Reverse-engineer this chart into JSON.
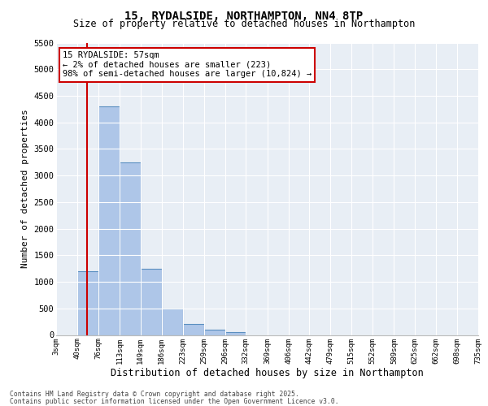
{
  "title_line1": "15, RYDALSIDE, NORTHAMPTON, NN4 8TP",
  "title_line2": "Size of property relative to detached houses in Northampton",
  "xlabel": "Distribution of detached houses by size in Northampton",
  "ylabel": "Number of detached properties",
  "bins": [
    "3sqm",
    "40sqm",
    "76sqm",
    "113sqm",
    "149sqm",
    "186sqm",
    "223sqm",
    "259sqm",
    "296sqm",
    "332sqm",
    "369sqm",
    "406sqm",
    "442sqm",
    "479sqm",
    "515sqm",
    "552sqm",
    "589sqm",
    "625sqm",
    "662sqm",
    "698sqm",
    "735sqm"
  ],
  "bin_edges": [
    3,
    40,
    76,
    113,
    149,
    186,
    223,
    259,
    296,
    332,
    369,
    406,
    442,
    479,
    515,
    552,
    589,
    625,
    662,
    698,
    735
  ],
  "bar_heights": [
    0,
    1200,
    4300,
    3250,
    1250,
    500,
    200,
    100,
    60,
    0,
    0,
    0,
    0,
    0,
    0,
    0,
    0,
    0,
    0,
    0
  ],
  "bar_color": "#aec6e8",
  "bar_edgecolor": "#5a8fc0",
  "property_line_x": 57,
  "property_line_color": "#cc0000",
  "ylim": [
    0,
    5500
  ],
  "yticks": [
    0,
    500,
    1000,
    1500,
    2000,
    2500,
    3000,
    3500,
    4000,
    4500,
    5000,
    5500
  ],
  "annotation_title": "15 RYDALSIDE: 57sqm",
  "annotation_line1": "← 2% of detached houses are smaller (223)",
  "annotation_line2": "98% of semi-detached houses are larger (10,824) →",
  "annotation_box_color": "#cc0000",
  "bg_color": "#e8eef5",
  "footer_line1": "Contains HM Land Registry data © Crown copyright and database right 2025.",
  "footer_line2": "Contains public sector information licensed under the Open Government Licence v3.0."
}
